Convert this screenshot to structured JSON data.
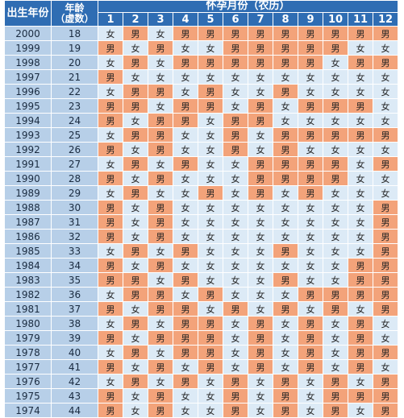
{
  "header": {
    "birth_year": "出生年份",
    "age_line1": "年龄",
    "age_line2": "（虚数）",
    "months_title": "怀孕月份（农历）",
    "months": [
      "1",
      "2",
      "3",
      "4",
      "5",
      "6",
      "7",
      "8",
      "9",
      "10",
      "11",
      "12"
    ]
  },
  "colors": {
    "header": "#2f6db3",
    "male": "#f3a37a",
    "female": "#dceaf6",
    "year_col": "#b7cfe8"
  },
  "rows": [
    {
      "year": "2000",
      "age": "18",
      "cells": [
        "女",
        "男",
        "女",
        "男",
        "男",
        "男",
        "男",
        "男",
        "男",
        "男",
        "男",
        "男"
      ]
    },
    {
      "year": "1999",
      "age": "19",
      "cells": [
        "男",
        "女",
        "男",
        "女",
        "女",
        "男",
        "男",
        "男",
        "男",
        "男",
        "女",
        "女"
      ]
    },
    {
      "year": "1998",
      "age": "20",
      "cells": [
        "女",
        "男",
        "女",
        "男",
        "男",
        "男",
        "男",
        "男",
        "男",
        "女",
        "男",
        "男"
      ]
    },
    {
      "year": "1997",
      "age": "21",
      "cells": [
        "男",
        "女",
        "女",
        "女",
        "女",
        "女",
        "女",
        "女",
        "女",
        "女",
        "女",
        "女"
      ]
    },
    {
      "year": "1996",
      "age": "22",
      "cells": [
        "女",
        "男",
        "男",
        "女",
        "男",
        "女",
        "女",
        "男",
        "女",
        "女",
        "女",
        "女"
      ]
    },
    {
      "year": "1995",
      "age": "23",
      "cells": [
        "男",
        "男",
        "女",
        "男",
        "男",
        "女",
        "男",
        "女",
        "男",
        "男",
        "男",
        "女"
      ]
    },
    {
      "year": "1994",
      "age": "24",
      "cells": [
        "男",
        "女",
        "男",
        "男",
        "女",
        "男",
        "男",
        "女",
        "女",
        "女",
        "女",
        "女"
      ]
    },
    {
      "year": "1993",
      "age": "25",
      "cells": [
        "女",
        "男",
        "男",
        "女",
        "女",
        "男",
        "女",
        "男",
        "男",
        "男",
        "男",
        "男"
      ]
    },
    {
      "year": "1992",
      "age": "26",
      "cells": [
        "男",
        "女",
        "男",
        "女",
        "女",
        "男",
        "女",
        "男",
        "女",
        "女",
        "女",
        "女"
      ]
    },
    {
      "year": "1991",
      "age": "27",
      "cells": [
        "女",
        "男",
        "女",
        "男",
        "女",
        "女",
        "男",
        "男",
        "男",
        "男",
        "女",
        "男"
      ]
    },
    {
      "year": "1990",
      "age": "28",
      "cells": [
        "男",
        "女",
        "男",
        "女",
        "女",
        "女",
        "男",
        "男",
        "男",
        "男",
        "女",
        "女"
      ]
    },
    {
      "year": "1989",
      "age": "29",
      "cells": [
        "女",
        "男",
        "女",
        "女",
        "男",
        "女",
        "男",
        "女",
        "男",
        "女",
        "女",
        "女"
      ]
    },
    {
      "year": "1988",
      "age": "30",
      "cells": [
        "男",
        "女",
        "男",
        "女",
        "女",
        "女",
        "女",
        "女",
        "女",
        "女",
        "女",
        "男"
      ]
    },
    {
      "year": "1987",
      "age": "31",
      "cells": [
        "男",
        "女",
        "男",
        "女",
        "女",
        "女",
        "女",
        "女",
        "女",
        "女",
        "女",
        "男"
      ]
    },
    {
      "year": "1986",
      "age": "32",
      "cells": [
        "男",
        "女",
        "男",
        "女",
        "女",
        "女",
        "女",
        "女",
        "女",
        "女",
        "女",
        "男"
      ]
    },
    {
      "year": "1985",
      "age": "33",
      "cells": [
        "女",
        "男",
        "女",
        "男",
        "女",
        "女",
        "女",
        "男",
        "女",
        "女",
        "女",
        "男"
      ]
    },
    {
      "year": "1984",
      "age": "34",
      "cells": [
        "男",
        "女",
        "男",
        "女",
        "女",
        "女",
        "女",
        "女",
        "女",
        "女",
        "男",
        "男"
      ]
    },
    {
      "year": "1983",
      "age": "35",
      "cells": [
        "男",
        "男",
        "女",
        "男",
        "女",
        "女",
        "女",
        "男",
        "女",
        "女",
        "男",
        "男"
      ]
    },
    {
      "year": "1982",
      "age": "36",
      "cells": [
        "女",
        "男",
        "男",
        "女",
        "男",
        "女",
        "女",
        "女",
        "男",
        "男",
        "男",
        "男"
      ]
    },
    {
      "year": "1981",
      "age": "37",
      "cells": [
        "男",
        "女",
        "男",
        "男",
        "女",
        "男",
        "女",
        "男",
        "女",
        "男",
        "女",
        "男"
      ]
    },
    {
      "year": "1980",
      "age": "38",
      "cells": [
        "女",
        "男",
        "女",
        "男",
        "男",
        "女",
        "男",
        "女",
        "男",
        "女",
        "男",
        "女"
      ]
    },
    {
      "year": "1979",
      "age": "39",
      "cells": [
        "男",
        "女",
        "男",
        "男",
        "男",
        "女",
        "男",
        "女",
        "男",
        "女",
        "男",
        "女"
      ]
    },
    {
      "year": "1978",
      "age": "40",
      "cells": [
        "女",
        "男",
        "女",
        "男",
        "男",
        "女",
        "男",
        "女",
        "男",
        "女",
        "男",
        "男"
      ]
    },
    {
      "year": "1977",
      "age": "41",
      "cells": [
        "男",
        "女",
        "男",
        "女",
        "男",
        "女",
        "男",
        "女",
        "男",
        "女",
        "男",
        "女"
      ]
    },
    {
      "year": "1976",
      "age": "42",
      "cells": [
        "女",
        "男",
        "女",
        "男",
        "女",
        "男",
        "女",
        "男",
        "女",
        "男",
        "女",
        "男"
      ]
    },
    {
      "year": "1975",
      "age": "43",
      "cells": [
        "男",
        "女",
        "男",
        "女",
        "女",
        "男",
        "女",
        "男",
        "女",
        "男",
        "男",
        "男"
      ]
    },
    {
      "year": "1974",
      "age": "44",
      "cells": [
        "男",
        "女",
        "男",
        "女",
        "女",
        "男",
        "女",
        "男",
        "女",
        "男",
        "女",
        "男"
      ]
    }
  ]
}
